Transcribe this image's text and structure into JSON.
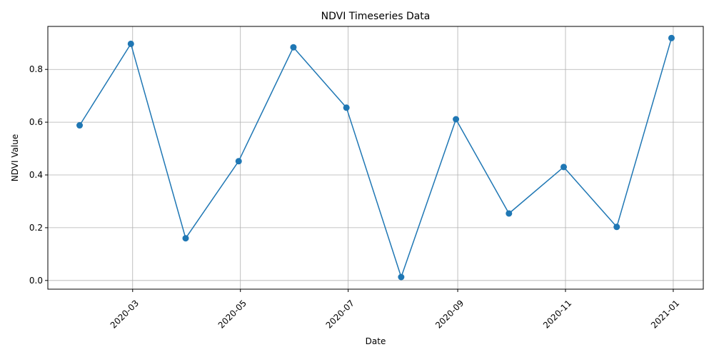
{
  "chart_data": {
    "type": "line",
    "title": "NDVI Timeseries Data",
    "xlabel": "Date",
    "ylabel": "NDVI Value",
    "x_tick_labels": [
      "2020-03",
      "2020-05",
      "2020-07",
      "2020-09",
      "2020-11",
      "2021-01"
    ],
    "x_ticks": [
      "2020-03-01",
      "2020-05-01",
      "2020-07-01",
      "2020-09-01",
      "2020-11-01",
      "2021-01-01"
    ],
    "y_ticks": [
      0.0,
      0.2,
      0.4,
      0.6,
      0.8
    ],
    "y_tick_labels": [
      "0.0",
      "0.2",
      "0.4",
      "0.6",
      "0.8"
    ],
    "xlim": [
      "2020-01-13",
      "2021-01-18"
    ],
    "ylim": [
      -0.033,
      0.963
    ],
    "grid": true,
    "series": [
      {
        "color": "#1f77b4",
        "marker": "circle",
        "x": [
          "2020-01-31",
          "2020-02-29",
          "2020-03-31",
          "2020-04-30",
          "2020-05-31",
          "2020-06-30",
          "2020-07-31",
          "2020-08-31",
          "2020-09-30",
          "2020-10-31",
          "2020-11-30",
          "2020-12-31"
        ],
        "y": [
          0.588,
          0.897,
          0.16,
          0.452,
          0.884,
          0.655,
          0.013,
          0.611,
          0.254,
          0.43,
          0.203,
          0.919
        ]
      }
    ]
  }
}
